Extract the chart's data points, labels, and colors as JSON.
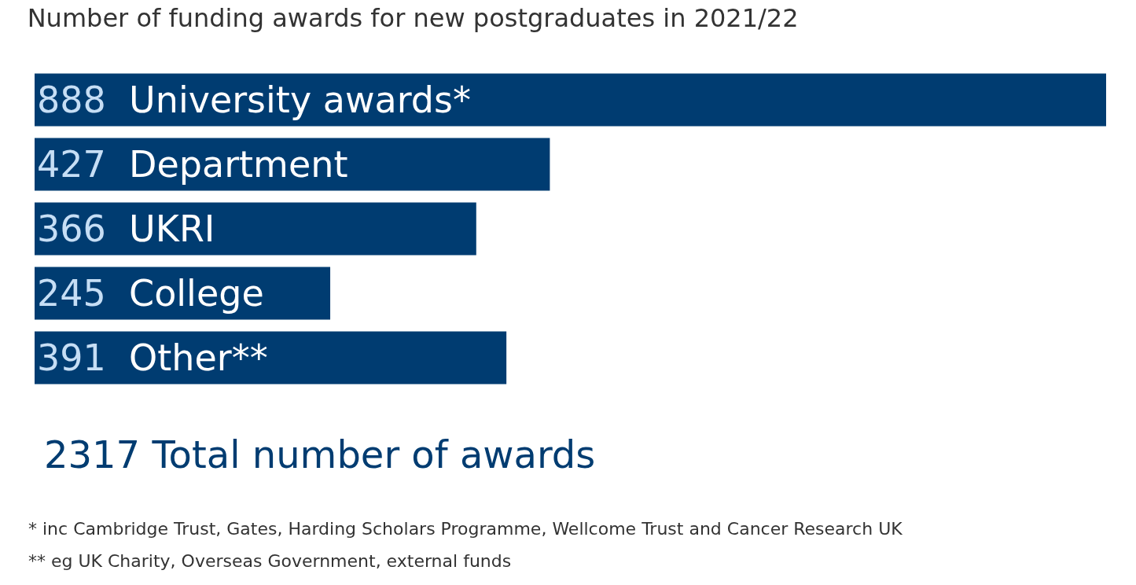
{
  "chart_data": {
    "type": "bar",
    "orientation": "horizontal",
    "title": "Number of funding awards for new postgraduates in 2021/22",
    "categories": [
      "University awards*",
      "Department",
      "UKRI",
      "College",
      "Other**"
    ],
    "values": [
      888,
      427,
      366,
      245,
      391
    ],
    "color": "#003c71",
    "data_labels": true,
    "xlim": [
      0,
      888
    ],
    "tick_labels": false,
    "legend": false,
    "annotations": [
      "2317 Total number of awards",
      "* inc Cambridge Trust, Gates, Harding Scholars Programme, Wellcome Trust and Cancer Research UK",
      "** eg UK Charity, Overseas Government, external funds"
    ]
  }
}
